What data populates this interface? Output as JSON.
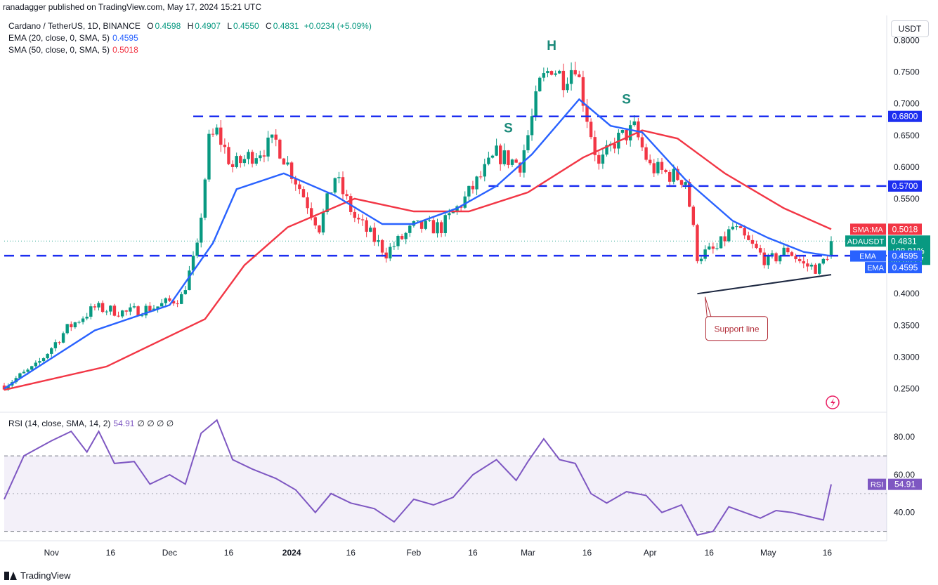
{
  "header": {
    "published": "ranadagger published on TradingView.com, May 17, 2024 15:21 UTC"
  },
  "legend": {
    "symbol": "Cardano / TetherUS, 1D, BINANCE",
    "open_label": "O",
    "open": "0.4598",
    "high_label": "H",
    "high": "0.4907",
    "low_label": "L",
    "low": "0.4550",
    "close_label": "C",
    "close": "0.4831",
    "change": "+0.0234 (+5.09%)",
    "ema_label": "EMA (20, close, 0, SMA, 5)",
    "ema_value": "0.4595",
    "sma_label": "SMA (50, close, 0, SMA, 5)",
    "sma_value": "0.5018",
    "rsi_label": "RSI (14, close, SMA, 14, 2)",
    "rsi_value": "54.91",
    "rsi_extra": "∅ ∅ ∅ ∅"
  },
  "unit_button": "USDT",
  "footer": {
    "brand": "TradingView"
  },
  "colors": {
    "up": "#089981",
    "down": "#f23645",
    "ema": "#2962ff",
    "sma": "#f23645",
    "rsi": "#7e57c2",
    "level": "#1c2ef0",
    "text": "#131722",
    "grid": "#f0f3fa"
  },
  "chart_data": [
    {
      "type": "candlestick",
      "title": "Cardano / TetherUS, 1D, BINANCE",
      "x_range": [
        "2023-10-20",
        "2024-05-17"
      ],
      "ylim": [
        0.215,
        0.815
      ],
      "y_ticks": [
        "0.8000",
        "0.7500",
        "0.7000",
        "0.6500",
        "0.6000",
        "0.5500",
        "0.5000",
        "0.4500",
        "0.4000",
        "0.3500",
        "0.3000",
        "0.2500"
      ],
      "x_ticks": [
        {
          "date": "2023-11-01",
          "label": "Nov"
        },
        {
          "date": "2023-11-16",
          "label": "16"
        },
        {
          "date": "2023-12-01",
          "label": "Dec"
        },
        {
          "date": "2023-12-16",
          "label": "16"
        },
        {
          "date": "2024-01-01",
          "label": "2024"
        },
        {
          "date": "2024-01-16",
          "label": "16"
        },
        {
          "date": "2024-02-01",
          "label": "Feb"
        },
        {
          "date": "2024-02-16",
          "label": "16"
        },
        {
          "date": "2024-03-01",
          "label": "Mar"
        },
        {
          "date": "2024-03-16",
          "label": "16"
        },
        {
          "date": "2024-04-01",
          "label": "Apr"
        },
        {
          "date": "2024-04-16",
          "label": "16"
        },
        {
          "date": "2024-05-01",
          "label": "May"
        },
        {
          "date": "2024-05-16",
          "label": "16"
        }
      ],
      "close_anchors": [
        [
          "2023-10-20",
          0.255
        ],
        [
          "2023-10-28",
          0.285
        ],
        [
          "2023-11-05",
          0.345
        ],
        [
          "2023-11-12",
          0.378
        ],
        [
          "2023-11-20",
          0.37
        ],
        [
          "2023-11-28",
          0.38
        ],
        [
          "2023-12-04",
          0.395
        ],
        [
          "2023-12-08",
          0.47
        ],
        [
          "2023-12-11",
          0.64
        ],
        [
          "2023-12-13",
          0.655
        ],
        [
          "2023-12-17",
          0.6
        ],
        [
          "2023-12-22",
          0.62
        ],
        [
          "2023-12-28",
          0.64
        ],
        [
          "2024-01-02",
          0.58
        ],
        [
          "2024-01-08",
          0.505
        ],
        [
          "2024-01-12",
          0.585
        ],
        [
          "2024-01-17",
          0.52
        ],
        [
          "2024-01-25",
          0.465
        ],
        [
          "2024-02-01",
          0.505
        ],
        [
          "2024-02-08",
          0.505
        ],
        [
          "2024-02-14",
          0.55
        ],
        [
          "2024-02-22",
          0.62
        ],
        [
          "2024-02-28",
          0.605
        ],
        [
          "2024-03-01",
          0.65
        ],
        [
          "2024-03-04",
          0.73
        ],
        [
          "2024-03-07",
          0.76
        ],
        [
          "2024-03-10",
          0.74
        ],
        [
          "2024-03-13",
          0.765
        ],
        [
          "2024-03-16",
          0.68
        ],
        [
          "2024-03-19",
          0.6
        ],
        [
          "2024-03-23",
          0.64
        ],
        [
          "2024-03-28",
          0.66
        ],
        [
          "2024-04-01",
          0.6
        ],
        [
          "2024-04-05",
          0.59
        ],
        [
          "2024-04-10",
          0.58
        ],
        [
          "2024-04-13",
          0.46
        ],
        [
          "2024-04-18",
          0.47
        ],
        [
          "2024-04-22",
          0.505
        ],
        [
          "2024-04-26",
          0.48
        ],
        [
          "2024-05-01",
          0.45
        ],
        [
          "2024-05-06",
          0.47
        ],
        [
          "2024-05-10",
          0.445
        ],
        [
          "2024-05-14",
          0.44
        ],
        [
          "2024-05-16",
          0.462
        ],
        [
          "2024-05-17",
          0.4831
        ]
      ],
      "ema20": {
        "name": "EMA",
        "last": 0.4595,
        "points": [
          [
            "2023-10-20",
            0.25
          ],
          [
            "2023-11-12",
            0.342
          ],
          [
            "2023-12-01",
            0.382
          ],
          [
            "2023-12-12",
            0.48
          ],
          [
            "2023-12-18",
            0.565
          ],
          [
            "2023-12-30",
            0.59
          ],
          [
            "2024-01-12",
            0.555
          ],
          [
            "2024-01-24",
            0.51
          ],
          [
            "2024-02-01",
            0.51
          ],
          [
            "2024-02-12",
            0.535
          ],
          [
            "2024-02-22",
            0.57
          ],
          [
            "2024-03-02",
            0.62
          ],
          [
            "2024-03-14",
            0.707
          ],
          [
            "2024-03-22",
            0.665
          ],
          [
            "2024-03-30",
            0.655
          ],
          [
            "2024-04-10",
            0.58
          ],
          [
            "2024-04-22",
            0.515
          ],
          [
            "2024-05-01",
            0.488
          ],
          [
            "2024-05-10",
            0.466
          ],
          [
            "2024-05-17",
            0.4595
          ]
        ]
      },
      "sma50": {
        "name": "SMA",
        "last": 0.5018,
        "points": [
          [
            "2023-10-20",
            0.248
          ],
          [
            "2023-11-15",
            0.285
          ],
          [
            "2023-12-10",
            0.36
          ],
          [
            "2023-12-20",
            0.445
          ],
          [
            "2023-12-31",
            0.505
          ],
          [
            "2024-01-17",
            0.55
          ],
          [
            "2024-02-01",
            0.53
          ],
          [
            "2024-02-15",
            0.53
          ],
          [
            "2024-03-01",
            0.56
          ],
          [
            "2024-03-15",
            0.615
          ],
          [
            "2024-03-30",
            0.658
          ],
          [
            "2024-04-08",
            0.645
          ],
          [
            "2024-04-20",
            0.59
          ],
          [
            "2024-05-05",
            0.535
          ],
          [
            "2024-05-17",
            0.5018
          ]
        ]
      },
      "levels": [
        {
          "value": 0.68,
          "label": "0.6800",
          "from": "2023-12-07",
          "to": "2024-05-24"
        },
        {
          "value": 0.57,
          "label": "0.5700",
          "from": "2024-02-20",
          "to": "2024-05-24"
        },
        {
          "value": 0.46,
          "label": "0.4600",
          "from": "2023-10-20",
          "to": "2024-05-24"
        }
      ],
      "support_line": {
        "from": [
          "2024-04-13",
          0.4
        ],
        "to": [
          "2024-05-17",
          0.43
        ]
      },
      "pattern_labels": [
        {
          "text": "S",
          "date": "2024-02-25",
          "value": 0.655
        },
        {
          "text": "H",
          "date": "2024-03-07",
          "value": 0.785
        },
        {
          "text": "S",
          "date": "2024-03-26",
          "value": 0.7
        }
      ],
      "annotation": {
        "text": "Support line",
        "date": "2024-04-23",
        "value": 0.395
      },
      "price_tags": [
        {
          "label": "SMA:MA",
          "value": "0.5018",
          "y": 0.5018,
          "color": "#f23645"
        },
        {
          "label": "ADAUSDT",
          "value": "0.4831",
          "y": 0.4831,
          "color": "#089981",
          "extra1": "+98.81%",
          "extra2": "08:38:27"
        },
        {
          "label": "",
          "value": "0.4600",
          "y": 0.46,
          "color": "#1c2ef0"
        },
        {
          "label": "EMA",
          "value": "0.4595",
          "y": 0.4595,
          "color": "#2962ff"
        }
      ]
    },
    {
      "type": "line",
      "title": "RSI (14, close, SMA, 14, 2)",
      "ylim": [
        25,
        92
      ],
      "y_ticks": [
        "80.00",
        "60.00",
        "40.00"
      ],
      "band": [
        30,
        70
      ],
      "mid": 50,
      "last": 54.91,
      "last_label": "RSI",
      "points": [
        [
          "2023-10-20",
          47
        ],
        [
          "2023-10-25",
          70
        ],
        [
          "2023-11-01",
          78
        ],
        [
          "2023-11-06",
          83
        ],
        [
          "2023-11-10",
          72
        ],
        [
          "2023-11-13",
          83
        ],
        [
          "2023-11-17",
          66
        ],
        [
          "2023-11-22",
          67
        ],
        [
          "2023-11-26",
          55
        ],
        [
          "2023-12-01",
          60
        ],
        [
          "2023-12-05",
          55
        ],
        [
          "2023-12-09",
          82
        ],
        [
          "2023-12-13",
          89
        ],
        [
          "2023-12-17",
          68
        ],
        [
          "2023-12-22",
          63
        ],
        [
          "2023-12-28",
          58
        ],
        [
          "2024-01-02",
          52
        ],
        [
          "2024-01-07",
          40
        ],
        [
          "2024-01-11",
          50
        ],
        [
          "2024-01-16",
          45
        ],
        [
          "2024-01-22",
          42
        ],
        [
          "2024-01-27",
          35
        ],
        [
          "2024-02-01",
          47
        ],
        [
          "2024-02-06",
          44
        ],
        [
          "2024-02-11",
          48
        ],
        [
          "2024-02-16",
          60
        ],
        [
          "2024-02-22",
          68
        ],
        [
          "2024-02-27",
          57
        ],
        [
          "2024-03-01",
          67
        ],
        [
          "2024-03-05",
          79
        ],
        [
          "2024-03-09",
          68
        ],
        [
          "2024-03-13",
          66
        ],
        [
          "2024-03-17",
          50
        ],
        [
          "2024-03-21",
          45
        ],
        [
          "2024-03-26",
          51
        ],
        [
          "2024-03-31",
          49
        ],
        [
          "2024-04-04",
          40
        ],
        [
          "2024-04-09",
          44
        ],
        [
          "2024-04-13",
          28
        ],
        [
          "2024-04-17",
          30
        ],
        [
          "2024-04-21",
          43
        ],
        [
          "2024-04-25",
          40
        ],
        [
          "2024-04-29",
          37
        ],
        [
          "2024-05-03",
          41
        ],
        [
          "2024-05-07",
          40
        ],
        [
          "2024-05-11",
          38
        ],
        [
          "2024-05-15",
          36
        ],
        [
          "2024-05-17",
          54.91
        ]
      ]
    }
  ]
}
